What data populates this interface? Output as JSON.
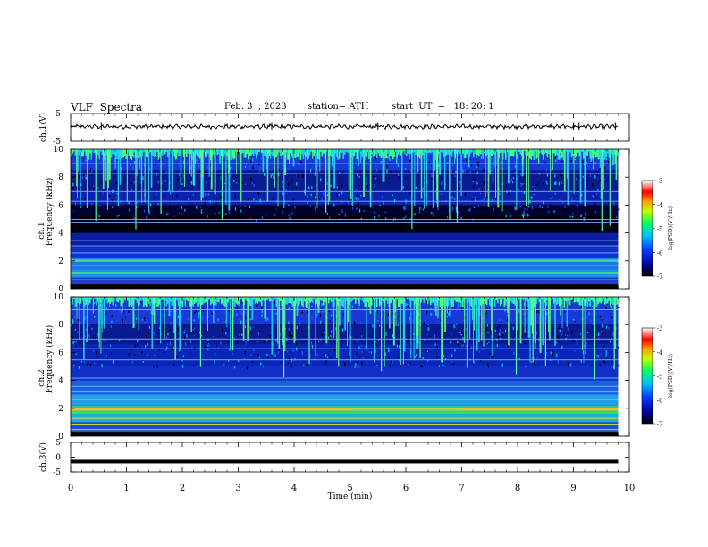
{
  "header": {
    "title": "VLF  Spectra",
    "date": "Feb. 3  , 2023",
    "station": "station= ATH",
    "start": "start  UT  =   18: 20: 1"
  },
  "chart_data": [
    {
      "type": "line",
      "panel": "ch1-waveform",
      "ylabel": "ch.1(V)",
      "ylim": [
        -5,
        5
      ],
      "yticks": [
        "5",
        "-5"
      ],
      "xlim": [
        0,
        10
      ],
      "series": [
        {
          "values_description_note": "",
          "baseline": 0.3,
          "amplitude_range": [
            -0.8,
            1.2
          ]
        }
      ]
    },
    {
      "type": "heatmap",
      "panel": "ch1-spectrogram",
      "ylabel_top": "ch.1",
      "ylabel": "Frequency  (kHz)",
      "ylim": [
        0,
        10
      ],
      "yticks": [
        "0",
        "2",
        "4",
        "6",
        "8",
        "10"
      ],
      "xlim": [
        0,
        10
      ],
      "data_end_min": 9.8,
      "colorbar": {
        "label": "log(PSD)(V²/Hz)",
        "ticks": [
          "-3",
          "-4",
          "-5",
          "-6",
          "-7"
        ],
        "range": [
          -7,
          -3
        ]
      }
    },
    {
      "type": "heatmap",
      "panel": "ch2-spectrogram",
      "ylabel_top": "ch.2",
      "ylabel": "Frequency  (kHz)",
      "ylim": [
        0,
        10
      ],
      "yticks": [
        "0",
        "2",
        "4",
        "6",
        "8",
        "10"
      ],
      "xlim": [
        0,
        10
      ],
      "data_end_min": 9.8,
      "colorbar": {
        "label": "log(PSD)(V²/Hz)",
        "ticks": [
          "-3",
          "-4",
          "-5",
          "-6",
          "-7"
        ],
        "range": [
          -7,
          -3
        ]
      }
    },
    {
      "type": "line",
      "panel": "ch3-waveform",
      "ylabel": "ch.3(V)",
      "ylim": [
        -5,
        5
      ],
      "yticks": [
        "5",
        "0",
        "-5"
      ],
      "xlim": [
        0,
        10
      ],
      "xlabel": "Time  (min)",
      "xticks": [
        "0",
        "1",
        "2",
        "3",
        "4",
        "5",
        "6",
        "7",
        "8",
        "9",
        "10"
      ],
      "series": [
        {
          "baseline": -1.5
        }
      ]
    }
  ]
}
